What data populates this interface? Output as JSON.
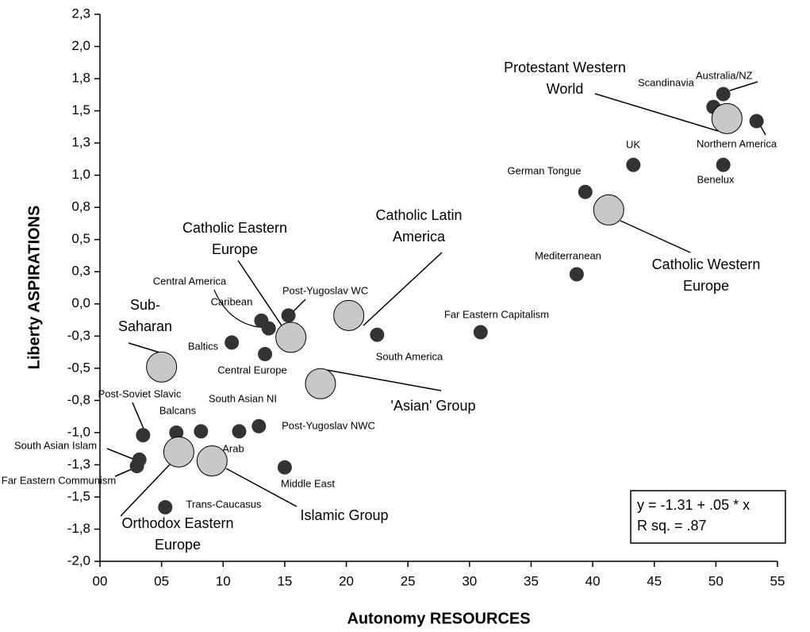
{
  "chart_data": {
    "type": "scatter",
    "xlabel": "Autonomy RESOURCES",
    "ylabel": "Liberty ASPIRATIONS",
    "xlim": [
      0,
      55
    ],
    "xticks": [
      {
        "value": 0,
        "label": "00"
      },
      {
        "value": 5,
        "label": "05"
      },
      10,
      15,
      20,
      25,
      30,
      35,
      40,
      45,
      50,
      55
    ],
    "ylim": [
      -2,
      2.25
    ],
    "yticks": [
      {
        "value": -2,
        "label": "-2,0"
      },
      {
        "value": -1.75,
        "label": "-1,8"
      },
      {
        "value": -1.5,
        "label": "-1,5"
      },
      {
        "value": -1.25,
        "label": "-1,3"
      },
      {
        "value": -1,
        "label": "-1,0"
      },
      {
        "value": -0.75,
        "label": "-0,8"
      },
      {
        "value": -0.5,
        "label": "-0,5"
      },
      {
        "value": -0.25,
        "label": "-0,3"
      },
      {
        "value": 0,
        "label": "0,0"
      },
      {
        "value": 0.25,
        "label": "0,3"
      },
      {
        "value": 0.5,
        "label": "0,5"
      },
      {
        "value": 0.75,
        "label": "0,8"
      },
      {
        "value": 1,
        "label": "1,0"
      },
      {
        "value": 1.25,
        "label": "1,3"
      },
      {
        "value": 1.5,
        "label": "1,5"
      },
      {
        "value": 1.75,
        "label": "1,8"
      },
      {
        "value": 2,
        "label": "2,0"
      },
      {
        "value": 2.25,
        "label": "2,3"
      }
    ],
    "series": [
      {
        "color": "#333333",
        "labels": [
          [
            "Australia/NZ"
          ],
          [
            "Scandinavia"
          ],
          [
            "Northern America"
          ],
          [
            "UK"
          ],
          [
            "Benelux"
          ],
          [
            "German Tongue"
          ],
          [
            "Mediterranean"
          ],
          [
            "Far Eastern  Capitalism"
          ],
          [
            "South America"
          ],
          [
            "Post-Yugoslav WC"
          ],
          [
            "Caribean"
          ],
          [
            "Central America"
          ],
          [
            "Baltics"
          ],
          [
            "Central Europe"
          ],
          [
            "Post-Soviet Slavic"
          ],
          [
            "Balcans"
          ],
          [
            "South Asian NI"
          ],
          [
            "Arab"
          ],
          [
            "Post-Yugoslav NWC"
          ],
          [
            "South Asian Islam"
          ],
          [
            "Far Eastern Communism"
          ],
          [
            "Middle East"
          ],
          [
            "Trans-Caucasus"
          ]
        ],
        "x": [
          50.6,
          49.8,
          53.3,
          43.3,
          50.6,
          39.4,
          38.7,
          30.9,
          22.5,
          15.3,
          13.1,
          13.7,
          10.7,
          13.4,
          3.5,
          6.2,
          8.2,
          11.3,
          12.9,
          3.2,
          3.0,
          15.0,
          5.3
        ],
        "values": [
          1.63,
          1.53,
          1.42,
          1.08,
          1.08,
          0.87,
          0.23,
          -0.22,
          -0.24,
          -0.09,
          -0.13,
          -0.19,
          -0.3,
          -0.39,
          -1.02,
          -1.0,
          -0.99,
          -0.99,
          -0.95,
          -1.21,
          -1.26,
          -1.27,
          -1.58
        ]
      },
      {
        "color": "#c8c8c8",
        "labels": [
          [
            "Protestant Western",
            "World"
          ],
          [
            "Catholic Western",
            "Europe"
          ],
          [
            "Catholic Latin",
            "America"
          ],
          [
            "Catholic Eastern",
            "Europe"
          ],
          [
            "Sub-",
            "Saharan"
          ],
          [
            "'Asian' Group"
          ],
          [
            "Orthodox Eastern",
            "Europe"
          ],
          [
            "Islamic Group"
          ]
        ],
        "x": [
          50.9,
          41.3,
          20.2,
          15.5,
          5.0,
          17.9,
          6.4,
          9.1
        ],
        "values": [
          1.44,
          0.73,
          -0.09,
          -0.26,
          -0.49,
          -0.62,
          -1.15,
          -1.22
        ]
      }
    ],
    "annotations": [
      "y = -1.31 + .05 * x",
      "R sq. = .87"
    ]
  }
}
